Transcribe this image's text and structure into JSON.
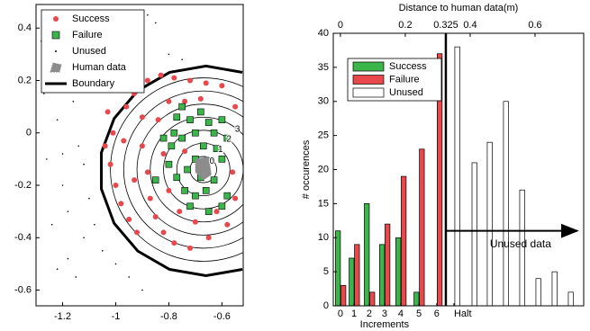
{
  "chart_data": [
    {
      "type": "scatter",
      "xlim": [
        -1.3,
        -0.52
      ],
      "ylim": [
        -0.66,
        0.49
      ],
      "xticks": [
        -1.2,
        -1,
        -0.8,
        -0.6
      ],
      "yticks": [
        0.4,
        0.2,
        0,
        -0.2,
        -0.4,
        -0.6
      ],
      "legend": "upper left",
      "series": [
        {
          "name": "Success",
          "color": "#e8474b",
          "marker": "circle",
          "x": [
            -1.03,
            -1.01,
            -1.04,
            -1.02,
            -1.0,
            -0.98,
            -0.95,
            -0.92,
            -0.96,
            -0.93,
            -0.88,
            -0.83,
            -0.78,
            -0.72,
            -0.66,
            -0.6,
            -0.55,
            -0.9,
            -0.88,
            -0.87,
            -0.85,
            -0.82,
            -0.78,
            -0.72,
            -0.65,
            -0.58,
            -0.55,
            -0.84,
            -0.82,
            -0.8,
            -0.76,
            -0.7,
            -0.62,
            -0.8,
            -0.74,
            -0.68,
            -0.97,
            -0.9,
            -0.93,
            -0.74,
            -0.56
          ],
          "values": [
            0.08,
            0.0,
            -0.05,
            -0.12,
            -0.2,
            -0.27,
            -0.33,
            -0.38,
            0.1,
            0.15,
            0.2,
            0.22,
            0.21,
            0.2,
            0.19,
            0.18,
            0.1,
            -0.05,
            -0.15,
            -0.25,
            -0.32,
            -0.38,
            -0.42,
            -0.44,
            -0.4,
            -0.35,
            -0.25,
            0.05,
            -0.08,
            -0.22,
            -0.3,
            -0.34,
            -0.3,
            0.12,
            0.12,
            0.13,
            -0.03,
            0.06,
            -0.18,
            -0.07,
            -0.15
          ]
        },
        {
          "name": "Failure",
          "color": "#3cb54a",
          "marker": "square",
          "x": [
            -0.68,
            -0.72,
            -0.77,
            -0.65,
            -0.6,
            -0.75,
            -0.79,
            -0.8,
            -0.77,
            -0.74,
            -0.7,
            -0.66,
            -0.63,
            -0.6,
            -0.7,
            -0.73,
            -0.68,
            -0.62,
            -0.58,
            -0.72,
            -0.65,
            -0.58,
            -0.82,
            -0.78,
            -0.67,
            -0.63,
            -0.85,
            -0.7,
            -0.6,
            -0.75
          ],
          "values": [
            0.08,
            0.05,
            0.06,
            0.04,
            0.05,
            -0.02,
            -0.05,
            -0.12,
            -0.17,
            -0.22,
            -0.24,
            -0.22,
            -0.18,
            -0.1,
            -0.1,
            -0.14,
            -0.17,
            -0.06,
            -0.02,
            -0.28,
            -0.3,
            -0.24,
            -0.02,
            0.0,
            -0.05,
            0.0,
            -0.18,
            0.0,
            -0.28,
            0.1
          ]
        },
        {
          "name": "Unused",
          "color": "#000000",
          "marker": "dot",
          "x": [
            -1.28,
            -1.25,
            -1.22,
            -1.26,
            -1.2,
            -1.24,
            -1.18,
            -1.15,
            -1.12,
            -1.1,
            -1.14,
            -1.16,
            -1.2,
            -1.1,
            -1.05,
            -1.0,
            -0.95,
            -0.9,
            -0.85,
            -0.98,
            -1.08,
            -1.12,
            -1.08,
            -1.05,
            -1.0,
            -0.95,
            -0.9,
            -1.22,
            -1.27,
            -1.18,
            -0.88,
            -0.8,
            -0.75,
            -1.13,
            -1.2
          ],
          "values": [
            0.35,
            0.25,
            0.05,
            -0.1,
            -0.2,
            -0.35,
            -0.48,
            -0.55,
            -0.4,
            -0.25,
            -0.05,
            0.12,
            0.3,
            0.42,
            0.3,
            0.38,
            0.45,
            0.33,
            0.42,
            0.25,
            0.18,
            -0.12,
            -0.35,
            -0.45,
            -0.5,
            -0.55,
            -0.6,
            -0.52,
            0.15,
            -0.3,
            0.45,
            0.3,
            0.28,
            0.36,
            -0.08
          ]
        },
        {
          "name": "Human data",
          "color": "#8c8c8c",
          "marker": "polygon",
          "x": [
            -0.7,
            -0.65,
            -0.64,
            -0.67,
            -0.7
          ],
          "values": [
            -0.1,
            -0.09,
            -0.16,
            -0.18,
            -0.15
          ]
        },
        {
          "name": "Boundary",
          "color": "#000000",
          "marker": "line",
          "x": [
            -0.523,
            -0.66,
            -0.797,
            -0.917,
            -1.006,
            -1.054,
            -1.054,
            -1.006,
            -0.917,
            -0.797,
            -0.66,
            -0.523
          ],
          "values": [
            0.231,
            0.255,
            0.231,
            0.161,
            0.055,
            -0.075,
            -0.214,
            -0.345,
            -0.451,
            -0.521,
            -0.545,
            -0.521
          ]
        }
      ],
      "contours": {
        "center": [
          -0.67,
          -0.14
        ],
        "levels": [
          0,
          1,
          2,
          3,
          4,
          5,
          6
        ],
        "radii": [
          0.05,
          0.1,
          0.15,
          0.2,
          0.25,
          0.3,
          0.35
        ]
      }
    },
    {
      "type": "bar",
      "x2label": "Distance to human data(m)",
      "xlabel": "Increments",
      "ylabel": "# occurences",
      "xlim": [
        -0.022,
        0.75
      ],
      "ylim": [
        0,
        40
      ],
      "yticks": [
        0,
        5,
        10,
        15,
        20,
        25,
        30,
        35,
        40
      ],
      "x2ticks": [
        0,
        0.2,
        0.325,
        0.4,
        0.6
      ],
      "xticks": [
        {
          "value": 0,
          "label": "0"
        },
        {
          "value": 0.042,
          "label": "1"
        },
        {
          "value": 0.089,
          "label": "2"
        },
        {
          "value": 0.136,
          "label": "3"
        },
        {
          "value": 0.186,
          "label": "4"
        },
        {
          "value": 0.242,
          "label": "5"
        },
        {
          "value": 0.297,
          "label": "6"
        },
        {
          "value": 0.35,
          "label": "Halt"
        }
      ],
      "legend": "upper left",
      "series": [
        {
          "name": "Success",
          "color": "#3cb54a",
          "x": [
            0,
            0.042,
            0.089,
            0.136,
            0.186,
            0.242,
            0.297
          ],
          "values": [
            11,
            7,
            15,
            9,
            10,
            2,
            0
          ]
        },
        {
          "name": "Failure",
          "color": "#e8474b",
          "x": [
            0,
            0.042,
            0.089,
            0.136,
            0.186,
            0.242,
            0.297
          ],
          "values": [
            3,
            9,
            2,
            12,
            19,
            23,
            37
          ]
        },
        {
          "name": "Unused",
          "color": "#ffffff",
          "x": [
            0.361,
            0.414,
            0.461,
            0.511,
            0.561,
            0.611,
            0.661,
            0.711
          ],
          "values": [
            38,
            21,
            24,
            30,
            17,
            4,
            5,
            2
          ]
        }
      ],
      "threshold": 0.325,
      "annotation": {
        "text": "Unused data",
        "x": [
          0.325,
          0.73
        ],
        "y": 11
      }
    }
  ]
}
